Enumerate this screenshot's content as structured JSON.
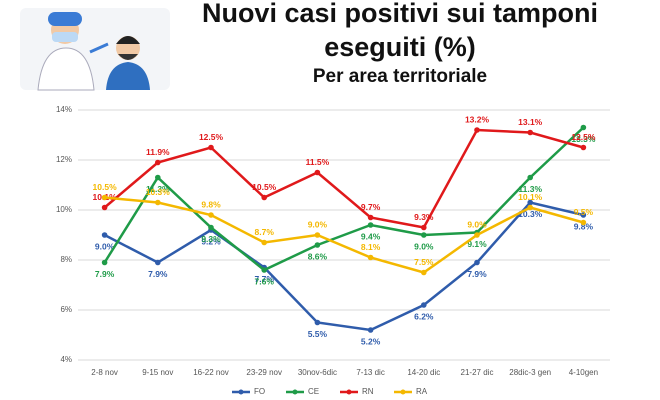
{
  "chart_data": {
    "type": "line",
    "title": "Nuovi casi positivi sui tamponi eseguiti (%)",
    "subtitle": "Per area territoriale",
    "categories": [
      "2-8 nov",
      "9-15 nov",
      "16-22 nov",
      "23-29 nov",
      "30nov-6dic",
      "7-13 dic",
      "14-20 dic",
      "21-27 dic",
      "28dic-3 gen",
      "4-10gen"
    ],
    "series": [
      {
        "name": "FO",
        "color": "#2f5cab",
        "values": [
          9.0,
          7.9,
          9.2,
          7.7,
          5.5,
          5.2,
          6.2,
          7.9,
          10.3,
          9.8
        ],
        "value_labels": [
          "9.0%",
          "7.9%",
          "9.2%",
          "7.7%",
          "5.5%",
          "5.2%",
          "6.2%",
          "7.9%",
          "10.3%",
          "9.8%"
        ]
      },
      {
        "name": "CE",
        "color": "#1f9b48",
        "values": [
          7.9,
          11.3,
          9.3,
          7.6,
          8.6,
          9.4,
          9.0,
          9.1,
          11.3,
          13.3
        ],
        "value_labels": [
          "7.9%",
          "11.3%",
          "9.3%",
          "7.6%",
          "8.6%",
          "9.4%",
          "9.0%",
          "9.1%",
          "11.3%",
          "13.3%"
        ]
      },
      {
        "name": "RN",
        "color": "#e0191b",
        "values": [
          10.1,
          11.9,
          12.5,
          10.5,
          11.5,
          9.7,
          9.3,
          13.2,
          13.1,
          12.5
        ],
        "value_labels": [
          "10.1%",
          "11.9%",
          "12.5%",
          "10.5%",
          "11.5%",
          "9.7%",
          "9.3%",
          "13.2%",
          "13.1%",
          "12.5%"
        ]
      },
      {
        "name": "RA",
        "color": "#f4b800",
        "values": [
          10.5,
          10.3,
          9.8,
          8.7,
          9.0,
          8.1,
          7.5,
          9.0,
          10.1,
          9.5
        ],
        "value_labels": [
          "10.5%",
          "10.3%",
          "9.8%",
          "8.7%",
          "9.0%",
          "8.1%",
          "7.5%",
          "9.0%",
          "10.1%",
          "9.5%"
        ]
      }
    ],
    "ylim": [
      4,
      14
    ],
    "yticks": [
      {
        "value": 4,
        "label": "4%"
      },
      {
        "value": 6,
        "label": "6%"
      },
      {
        "value": 8,
        "label": "8%"
      },
      {
        "value": 10,
        "label": "10%"
      },
      {
        "value": 12,
        "label": "12%"
      },
      {
        "value": 14,
        "label": "14%"
      }
    ],
    "grid": true,
    "legend": "bottom"
  }
}
